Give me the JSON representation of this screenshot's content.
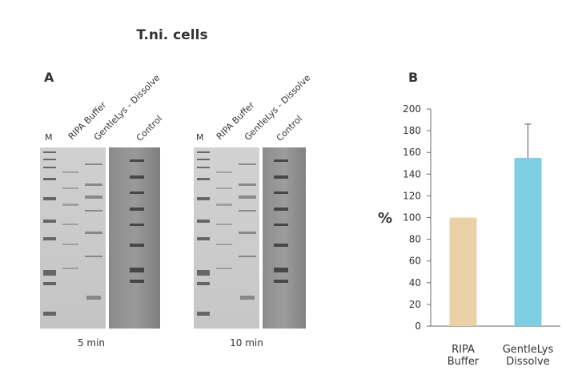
{
  "title": "T.ni. cells",
  "panel_a": {
    "letter": "A",
    "lane_labels": [
      "M",
      "RIPA Buffer",
      "GentleLys - Dissolve",
      "Control"
    ],
    "gels": [
      {
        "caption": "5 min"
      },
      {
        "caption": "10 min"
      }
    ]
  },
  "panel_b": {
    "letter": "B",
    "chart_data": {
      "type": "bar",
      "categories": [
        [
          "RIPA",
          "Buffer"
        ],
        [
          "GentleLys",
          "Dissolve"
        ]
      ],
      "values": [
        100,
        155
      ],
      "error_upper": [
        null,
        186
      ],
      "colors": [
        "#ebd1a8",
        "#7fcfe3"
      ],
      "ylabel": "%",
      "ylim": [
        0,
        200
      ],
      "yticks": [
        0,
        20,
        40,
        60,
        80,
        100,
        120,
        140,
        160,
        180,
        200
      ],
      "grid": false
    }
  }
}
